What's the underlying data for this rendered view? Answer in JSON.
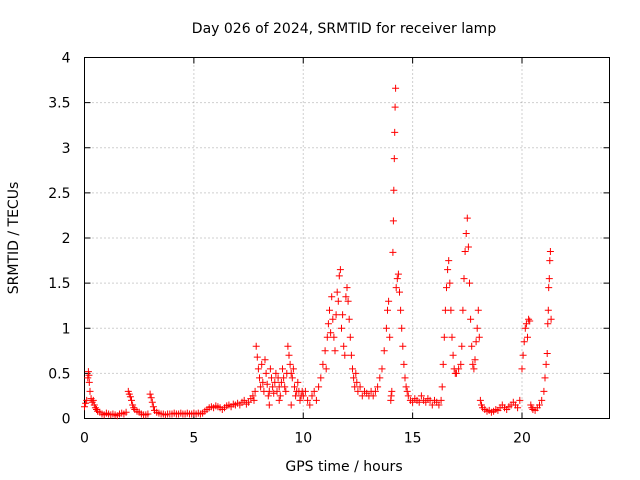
{
  "chart_data": {
    "type": "scatter",
    "title": "Day 026 of 2024, SRMTID for receiver lamp",
    "xlabel": "GPS time / hours",
    "ylabel": "SRMTID / TECUs",
    "xlim": [
      0,
      24
    ],
    "ylim": [
      0,
      4
    ],
    "xticks": [
      0,
      5,
      10,
      15,
      20
    ],
    "yticks": [
      0,
      0.5,
      1,
      1.5,
      2,
      2.5,
      3,
      3.5,
      4
    ],
    "xtick_labels": [
      "0",
      "5",
      "10",
      "15",
      "20"
    ],
    "ytick_labels": [
      "0",
      "0.5",
      "1",
      "1.5",
      "2",
      "2.5",
      "3",
      "3.5",
      "4"
    ],
    "grid": true,
    "marker": "+",
    "color": "#ff0000",
    "series": [
      {
        "name": "SRMTID",
        "points": [
          [
            0.0,
            0.13
          ],
          [
            0.05,
            0.17
          ],
          [
            0.1,
            0.2
          ],
          [
            0.15,
            0.45
          ],
          [
            0.18,
            0.52
          ],
          [
            0.2,
            0.48
          ],
          [
            0.22,
            0.4
          ],
          [
            0.25,
            0.3
          ],
          [
            0.3,
            0.22
          ],
          [
            0.35,
            0.18
          ],
          [
            0.4,
            0.2
          ],
          [
            0.45,
            0.15
          ],
          [
            0.5,
            0.12
          ],
          [
            0.55,
            0.1
          ],
          [
            0.6,
            0.08
          ],
          [
            0.7,
            0.07
          ],
          [
            0.8,
            0.05
          ],
          [
            0.9,
            0.04
          ],
          [
            1.0,
            0.06
          ],
          [
            1.1,
            0.05
          ],
          [
            1.2,
            0.04
          ],
          [
            1.3,
            0.05
          ],
          [
            1.4,
            0.04
          ],
          [
            1.5,
            0.03
          ],
          [
            1.6,
            0.05
          ],
          [
            1.7,
            0.06
          ],
          [
            1.8,
            0.05
          ],
          [
            1.9,
            0.07
          ],
          [
            2.0,
            0.3
          ],
          [
            2.05,
            0.27
          ],
          [
            2.1,
            0.24
          ],
          [
            2.15,
            0.2
          ],
          [
            2.2,
            0.15
          ],
          [
            2.25,
            0.12
          ],
          [
            2.3,
            0.1
          ],
          [
            2.4,
            0.08
          ],
          [
            2.5,
            0.07
          ],
          [
            2.6,
            0.05
          ],
          [
            2.7,
            0.04
          ],
          [
            2.8,
            0.04
          ],
          [
            2.9,
            0.05
          ],
          [
            3.0,
            0.27
          ],
          [
            3.05,
            0.23
          ],
          [
            3.1,
            0.18
          ],
          [
            3.15,
            0.13
          ],
          [
            3.2,
            0.09
          ],
          [
            3.3,
            0.07
          ],
          [
            3.4,
            0.06
          ],
          [
            3.5,
            0.05
          ],
          [
            3.6,
            0.05
          ],
          [
            3.7,
            0.04
          ],
          [
            3.8,
            0.05
          ],
          [
            3.9,
            0.05
          ],
          [
            4.0,
            0.05
          ],
          [
            4.1,
            0.06
          ],
          [
            4.2,
            0.05
          ],
          [
            4.3,
            0.05
          ],
          [
            4.4,
            0.06
          ],
          [
            4.5,
            0.05
          ],
          [
            4.6,
            0.05
          ],
          [
            4.7,
            0.06
          ],
          [
            4.8,
            0.05
          ],
          [
            4.9,
            0.05
          ],
          [
            5.0,
            0.06
          ],
          [
            5.1,
            0.05
          ],
          [
            5.2,
            0.06
          ],
          [
            5.3,
            0.05
          ],
          [
            5.4,
            0.06
          ],
          [
            5.5,
            0.08
          ],
          [
            5.6,
            0.1
          ],
          [
            5.7,
            0.12
          ],
          [
            5.8,
            0.13
          ],
          [
            5.9,
            0.12
          ],
          [
            6.0,
            0.14
          ],
          [
            6.1,
            0.13
          ],
          [
            6.2,
            0.12
          ],
          [
            6.3,
            0.1
          ],
          [
            6.4,
            0.12
          ],
          [
            6.5,
            0.14
          ],
          [
            6.6,
            0.15
          ],
          [
            6.7,
            0.13
          ],
          [
            6.8,
            0.16
          ],
          [
            6.9,
            0.15
          ],
          [
            7.0,
            0.17
          ],
          [
            7.1,
            0.15
          ],
          [
            7.2,
            0.18
          ],
          [
            7.3,
            0.2
          ],
          [
            7.4,
            0.16
          ],
          [
            7.5,
            0.18
          ],
          [
            7.6,
            0.22
          ],
          [
            7.7,
            0.25
          ],
          [
            7.75,
            0.2
          ],
          [
            7.8,
            0.3
          ],
          [
            7.85,
            0.8
          ],
          [
            7.9,
            0.68
          ],
          [
            7.95,
            0.55
          ],
          [
            8.0,
            0.45
          ],
          [
            8.05,
            0.35
          ],
          [
            8.1,
            0.6
          ],
          [
            8.15,
            0.4
          ],
          [
            8.2,
            0.3
          ],
          [
            8.25,
            0.65
          ],
          [
            8.3,
            0.5
          ],
          [
            8.35,
            0.38
          ],
          [
            8.4,
            0.25
          ],
          [
            8.45,
            0.3
          ],
          [
            8.5,
            0.55
          ],
          [
            8.55,
            0.45
          ],
          [
            8.6,
            0.35
          ],
          [
            8.65,
            0.28
          ],
          [
            8.7,
            0.4
          ],
          [
            8.75,
            0.5
          ],
          [
            8.8,
            0.3
          ],
          [
            8.85,
            0.45
          ],
          [
            8.9,
            0.35
          ],
          [
            8.95,
            0.25
          ],
          [
            9.0,
            0.4
          ],
          [
            9.05,
            0.55
          ],
          [
            9.1,
            0.45
          ],
          [
            9.15,
            0.35
          ],
          [
            9.2,
            0.3
          ],
          [
            9.25,
            0.5
          ],
          [
            9.3,
            0.8
          ],
          [
            9.35,
            0.7
          ],
          [
            9.4,
            0.6
          ],
          [
            9.45,
            0.5
          ],
          [
            9.5,
            0.45
          ],
          [
            9.55,
            0.55
          ],
          [
            9.6,
            0.35
          ],
          [
            9.65,
            0.25
          ],
          [
            9.7,
            0.3
          ],
          [
            9.75,
            0.4
          ],
          [
            9.8,
            0.3
          ],
          [
            9.85,
            0.2
          ],
          [
            9.9,
            0.25
          ],
          [
            9.95,
            0.3
          ],
          [
            9.45,
            0.15
          ],
          [
            8.45,
            0.15
          ],
          [
            8.9,
            0.2
          ],
          [
            10.0,
            0.25
          ],
          [
            10.1,
            0.3
          ],
          [
            10.2,
            0.2
          ],
          [
            10.3,
            0.15
          ],
          [
            10.4,
            0.25
          ],
          [
            10.5,
            0.3
          ],
          [
            10.6,
            0.2
          ],
          [
            10.7,
            0.35
          ],
          [
            10.8,
            0.45
          ],
          [
            10.9,
            0.6
          ],
          [
            11.0,
            0.75
          ],
          [
            11.05,
            0.55
          ],
          [
            11.1,
            0.9
          ],
          [
            11.15,
            1.05
          ],
          [
            11.2,
            1.2
          ],
          [
            11.25,
            0.95
          ],
          [
            11.3,
            1.35
          ],
          [
            11.35,
            1.1
          ],
          [
            11.4,
            0.9
          ],
          [
            11.45,
            0.75
          ],
          [
            11.5,
            1.15
          ],
          [
            11.55,
            1.4
          ],
          [
            11.6,
            1.3
          ],
          [
            11.65,
            1.58
          ],
          [
            11.7,
            1.65
          ],
          [
            11.75,
            1.0
          ],
          [
            11.8,
            1.15
          ],
          [
            11.85,
            0.8
          ],
          [
            11.9,
            0.7
          ],
          [
            11.95,
            1.35
          ],
          [
            12.0,
            1.45
          ],
          [
            12.05,
            1.3
          ],
          [
            12.1,
            1.1
          ],
          [
            12.15,
            0.9
          ],
          [
            12.2,
            0.7
          ],
          [
            12.25,
            0.55
          ],
          [
            12.3,
            0.45
          ],
          [
            12.35,
            0.35
          ],
          [
            12.4,
            0.5
          ],
          [
            12.45,
            0.4
          ],
          [
            12.5,
            0.3
          ],
          [
            12.6,
            0.35
          ],
          [
            12.7,
            0.25
          ],
          [
            12.8,
            0.3
          ],
          [
            12.9,
            0.28
          ],
          [
            13.0,
            0.25
          ],
          [
            13.1,
            0.3
          ],
          [
            13.2,
            0.25
          ],
          [
            13.3,
            0.3
          ],
          [
            13.4,
            0.35
          ],
          [
            13.5,
            0.45
          ],
          [
            13.6,
            0.55
          ],
          [
            13.7,
            0.75
          ],
          [
            13.8,
            1.0
          ],
          [
            13.85,
            1.2
          ],
          [
            13.9,
            1.3
          ],
          [
            13.95,
            0.9
          ],
          [
            14.0,
            0.2
          ],
          [
            14.02,
            0.25
          ],
          [
            14.05,
            0.3
          ],
          [
            14.1,
            1.84
          ],
          [
            14.12,
            2.19
          ],
          [
            14.14,
            2.53
          ],
          [
            14.16,
            2.88
          ],
          [
            14.18,
            3.17
          ],
          [
            14.2,
            3.45
          ],
          [
            14.22,
            3.66
          ],
          [
            14.25,
            1.45
          ],
          [
            14.3,
            1.55
          ],
          [
            14.35,
            1.6
          ],
          [
            14.4,
            1.4
          ],
          [
            14.45,
            1.2
          ],
          [
            14.5,
            1.0
          ],
          [
            14.55,
            0.8
          ],
          [
            14.6,
            0.6
          ],
          [
            14.65,
            0.45
          ],
          [
            14.7,
            0.35
          ],
          [
            14.75,
            0.3
          ],
          [
            14.8,
            0.25
          ],
          [
            14.9,
            0.2
          ],
          [
            15.0,
            0.18
          ],
          [
            15.1,
            0.22
          ],
          [
            15.2,
            0.2
          ],
          [
            15.3,
            0.18
          ],
          [
            15.4,
            0.25
          ],
          [
            15.5,
            0.2
          ],
          [
            15.6,
            0.18
          ],
          [
            15.7,
            0.22
          ],
          [
            15.8,
            0.2
          ],
          [
            15.9,
            0.15
          ],
          [
            16.0,
            0.2
          ],
          [
            16.1,
            0.18
          ],
          [
            16.2,
            0.15
          ],
          [
            16.3,
            0.2
          ],
          [
            16.35,
            0.35
          ],
          [
            16.4,
            0.6
          ],
          [
            16.45,
            0.9
          ],
          [
            16.5,
            1.2
          ],
          [
            16.55,
            1.45
          ],
          [
            16.6,
            1.65
          ],
          [
            16.65,
            1.75
          ],
          [
            16.7,
            1.5
          ],
          [
            16.75,
            1.2
          ],
          [
            16.8,
            0.9
          ],
          [
            16.85,
            0.7
          ],
          [
            16.9,
            0.55
          ],
          [
            16.95,
            0.5
          ],
          [
            17.0,
            0.5
          ],
          [
            17.1,
            0.55
          ],
          [
            17.2,
            0.6
          ],
          [
            17.25,
            0.8
          ],
          [
            17.3,
            1.2
          ],
          [
            17.35,
            1.55
          ],
          [
            17.4,
            1.85
          ],
          [
            17.45,
            2.05
          ],
          [
            17.5,
            2.22
          ],
          [
            17.55,
            1.9
          ],
          [
            17.6,
            1.5
          ],
          [
            17.65,
            1.1
          ],
          [
            17.7,
            0.8
          ],
          [
            17.75,
            0.6
          ],
          [
            17.8,
            0.55
          ],
          [
            17.85,
            0.65
          ],
          [
            17.9,
            0.85
          ],
          [
            17.95,
            1.0
          ],
          [
            18.0,
            1.2
          ],
          [
            18.05,
            0.9
          ],
          [
            18.1,
            0.2
          ],
          [
            18.15,
            0.15
          ],
          [
            18.2,
            0.12
          ],
          [
            18.3,
            0.1
          ],
          [
            18.4,
            0.08
          ],
          [
            18.5,
            0.09
          ],
          [
            18.6,
            0.07
          ],
          [
            18.7,
            0.08
          ],
          [
            18.8,
            0.1
          ],
          [
            18.9,
            0.09
          ],
          [
            19.0,
            0.12
          ],
          [
            19.1,
            0.15
          ],
          [
            19.2,
            0.12
          ],
          [
            19.3,
            0.1
          ],
          [
            19.4,
            0.13
          ],
          [
            19.5,
            0.15
          ],
          [
            19.6,
            0.18
          ],
          [
            19.7,
            0.15
          ],
          [
            19.8,
            0.12
          ],
          [
            19.9,
            0.2
          ],
          [
            20.0,
            0.55
          ],
          [
            20.05,
            0.7
          ],
          [
            20.1,
            0.85
          ],
          [
            20.15,
            1.0
          ],
          [
            20.2,
            1.05
          ],
          [
            20.25,
            0.9
          ],
          [
            20.3,
            1.1
          ],
          [
            20.35,
            1.08
          ],
          [
            20.4,
            0.15
          ],
          [
            20.45,
            0.12
          ],
          [
            20.5,
            0.1
          ],
          [
            20.6,
            0.09
          ],
          [
            20.7,
            0.12
          ],
          [
            20.8,
            0.15
          ],
          [
            20.9,
            0.2
          ],
          [
            21.0,
            0.3
          ],
          [
            21.05,
            0.45
          ],
          [
            21.1,
            0.6
          ],
          [
            21.15,
            0.72
          ],
          [
            21.18,
            1.05
          ],
          [
            21.2,
            1.2
          ],
          [
            21.22,
            1.45
          ],
          [
            21.25,
            1.55
          ],
          [
            21.27,
            1.75
          ],
          [
            21.3,
            1.85
          ],
          [
            21.33,
            1.1
          ]
        ]
      }
    ]
  }
}
